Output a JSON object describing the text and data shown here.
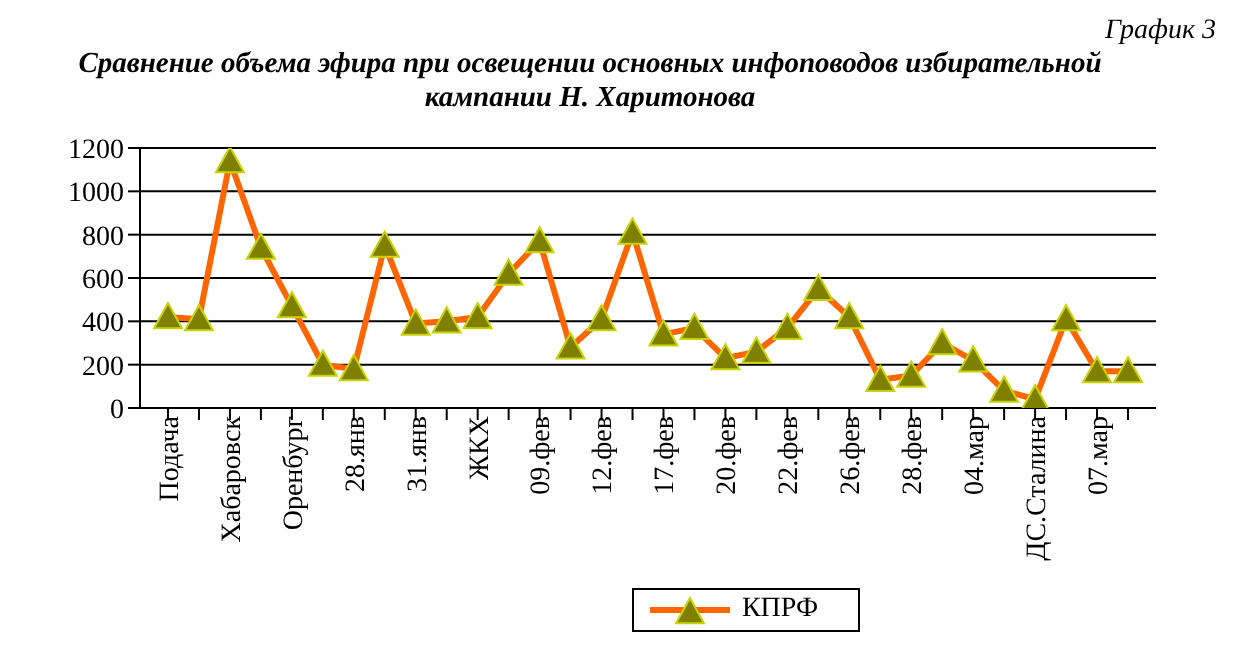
{
  "chart_data": {
    "type": "line",
    "title": "Сравнение объема эфира при освещении основных инфоповодов избирательной кампании Н. Харитонова",
    "annotations": [
      "График 3"
    ],
    "categories": [
      "Подача",
      null,
      "Хабаровск",
      null,
      "Оренбург",
      null,
      "28.янв",
      null,
      "31.янв",
      null,
      "ЖКХ",
      null,
      "09.фев",
      null,
      "12.фев",
      null,
      "17.фев",
      null,
      "20.фев",
      null,
      "22.фев",
      null,
      "26.фев",
      null,
      "28.фев",
      null,
      "04.мар",
      null,
      "ДС.Сталина",
      null,
      "07.мар",
      null
    ],
    "series": [
      {
        "name": "КПРФ",
        "color": "#ff6600",
        "values": [
          420,
          410,
          1140,
          740,
          470,
          200,
          180,
          750,
          390,
          400,
          420,
          620,
          770,
          280,
          410,
          810,
          340,
          370,
          230,
          260,
          370,
          550,
          420,
          130,
          150,
          300,
          220,
          80,
          40,
          410,
          170,
          170
        ]
      }
    ],
    "ylim": [
      0,
      1200
    ],
    "yticks": [
      0,
      200,
      400,
      600,
      800,
      1000,
      1200
    ],
    "grid": "y",
    "legend": "bottom",
    "marker": "triangle"
  }
}
